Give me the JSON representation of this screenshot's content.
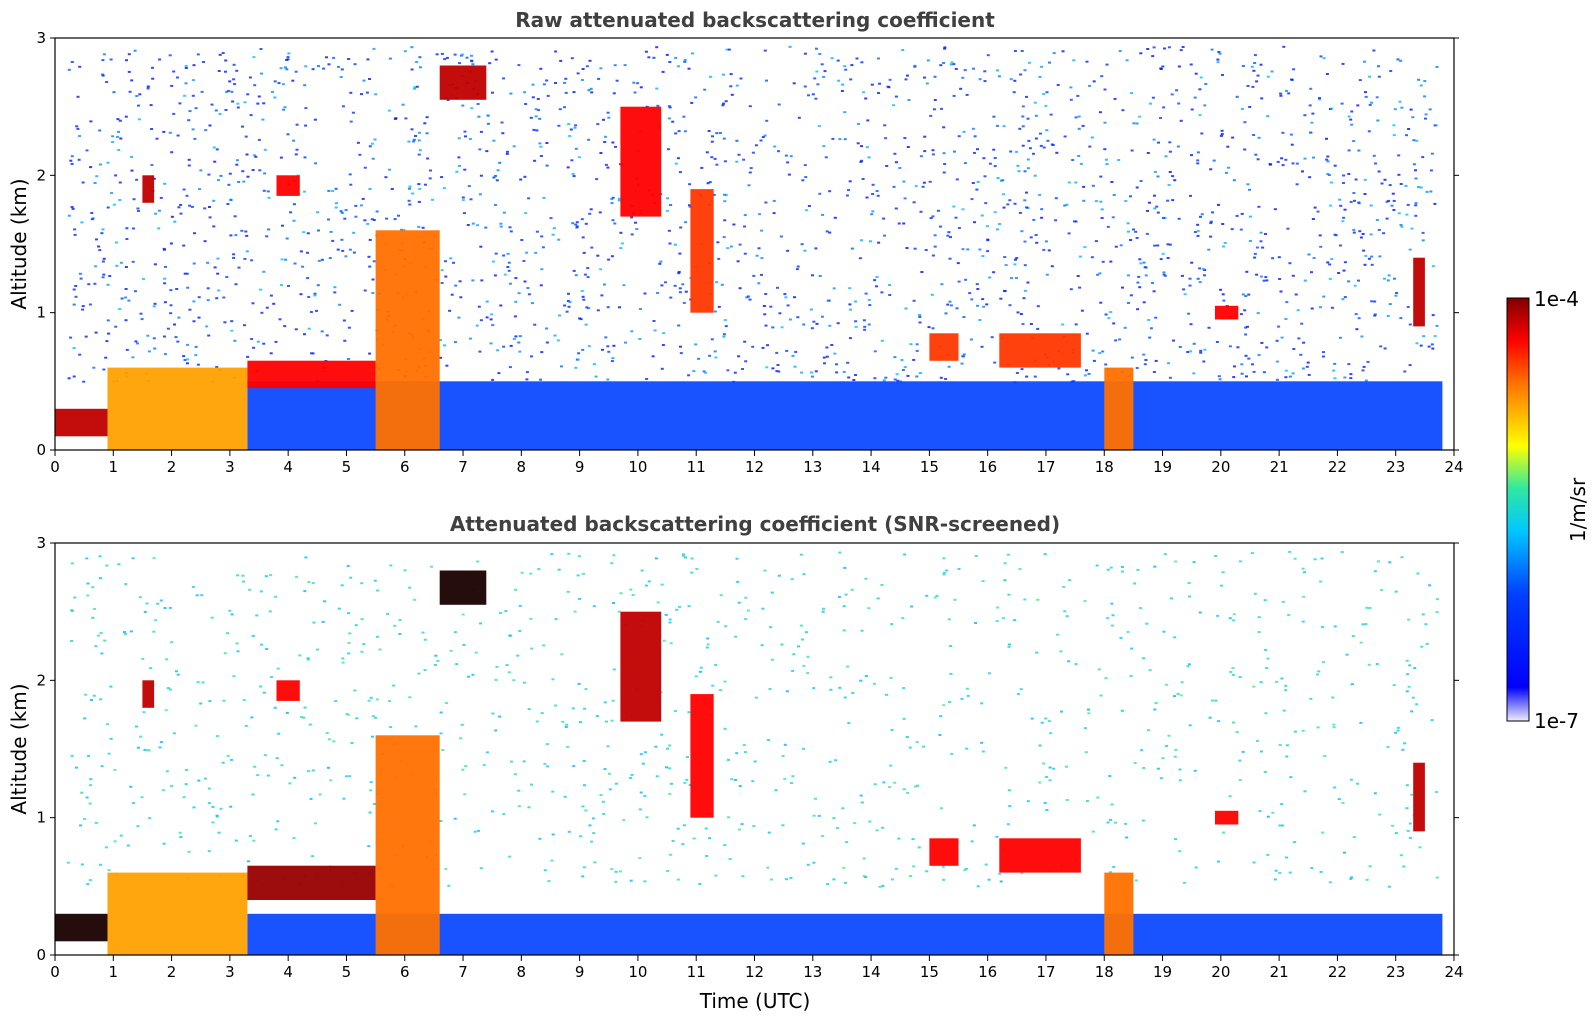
{
  "chart_data": [
    {
      "type": "heatmap",
      "title": "Raw attenuated backscattering coefficient",
      "xlabel": "",
      "ylabel": "Altitude (km)",
      "xlim": [
        0,
        24
      ],
      "ylim": [
        0,
        3
      ],
      "xticks": [
        "0",
        "1",
        "2",
        "3",
        "4",
        "5",
        "6",
        "7",
        "8",
        "9",
        "10",
        "11",
        "12",
        "13",
        "14",
        "15",
        "16",
        "17",
        "18",
        "19",
        "20",
        "21",
        "22",
        "23",
        "24"
      ],
      "yticks": [
        "0",
        "1",
        "2",
        "3"
      ],
      "features": [
        {
          "x": [
            0.0,
            0.9
          ],
          "y": [
            0.1,
            0.3
          ],
          "level": 0.95
        },
        {
          "x": [
            0.9,
            3.3
          ],
          "y": [
            0.0,
            0.6
          ],
          "level": 0.75
        },
        {
          "x": [
            3.3,
            5.5
          ],
          "y": [
            0.45,
            0.65
          ],
          "level": 0.9
        },
        {
          "x": [
            5.5,
            6.6
          ],
          "y": [
            0.0,
            1.6
          ],
          "level": 0.8
        },
        {
          "x": [
            6.6,
            7.4
          ],
          "y": [
            2.55,
            2.8
          ],
          "level": 0.95
        },
        {
          "x": [
            1.5,
            1.7
          ],
          "y": [
            1.8,
            2.0
          ],
          "level": 0.95
        },
        {
          "x": [
            3.8,
            4.2
          ],
          "y": [
            1.85,
            2.0
          ],
          "level": 0.9
        },
        {
          "x": [
            9.7,
            10.4
          ],
          "y": [
            1.7,
            2.5
          ],
          "level": 0.9
        },
        {
          "x": [
            10.9,
            11.3
          ],
          "y": [
            1.0,
            1.9
          ],
          "level": 0.85
        },
        {
          "x": [
            15.0,
            15.5
          ],
          "y": [
            0.65,
            0.85
          ],
          "level": 0.85
        },
        {
          "x": [
            16.2,
            17.6
          ],
          "y": [
            0.6,
            0.85
          ],
          "level": 0.85
        },
        {
          "x": [
            18.0,
            18.5
          ],
          "y": [
            0.0,
            0.6
          ],
          "level": 0.8
        },
        {
          "x": [
            19.9,
            20.3
          ],
          "y": [
            0.95,
            1.05
          ],
          "level": 0.9
        },
        {
          "x": [
            23.3,
            23.5
          ],
          "y": [
            0.9,
            1.4
          ],
          "level": 0.95
        },
        {
          "x": [
            3.3,
            23.8
          ],
          "y": [
            0.0,
            0.5
          ],
          "level": 0.3
        }
      ]
    },
    {
      "type": "heatmap",
      "title": "Attenuated backscattering coefficient (SNR-screened)",
      "xlabel": "Time (UTC)",
      "ylabel": "Altitude (km)",
      "xlim": [
        0,
        24
      ],
      "ylim": [
        0,
        3
      ],
      "xticks": [
        "0",
        "1",
        "2",
        "3",
        "4",
        "5",
        "6",
        "7",
        "8",
        "9",
        "10",
        "11",
        "12",
        "13",
        "14",
        "15",
        "16",
        "17",
        "18",
        "19",
        "20",
        "21",
        "22",
        "23",
        "24"
      ],
      "yticks": [
        "0",
        "1",
        "2",
        "3"
      ],
      "features": [
        {
          "x": [
            0.0,
            0.9
          ],
          "y": [
            0.1,
            0.3
          ],
          "level": 1.0
        },
        {
          "x": [
            0.9,
            3.3
          ],
          "y": [
            0.0,
            0.6
          ],
          "level": 0.75
        },
        {
          "x": [
            3.3,
            5.5
          ],
          "y": [
            0.4,
            0.65
          ],
          "level": 0.98
        },
        {
          "x": [
            5.5,
            6.6
          ],
          "y": [
            0.0,
            1.6
          ],
          "level": 0.8
        },
        {
          "x": [
            6.6,
            7.4
          ],
          "y": [
            2.55,
            2.8
          ],
          "level": 1.0
        },
        {
          "x": [
            1.5,
            1.7
          ],
          "y": [
            1.8,
            2.0
          ],
          "level": 0.95
        },
        {
          "x": [
            3.8,
            4.2
          ],
          "y": [
            1.85,
            2.0
          ],
          "level": 0.9
        },
        {
          "x": [
            9.7,
            10.4
          ],
          "y": [
            1.7,
            2.5
          ],
          "level": 0.95
        },
        {
          "x": [
            10.9,
            11.3
          ],
          "y": [
            1.0,
            1.9
          ],
          "level": 0.9
        },
        {
          "x": [
            15.0,
            15.5
          ],
          "y": [
            0.65,
            0.85
          ],
          "level": 0.9
        },
        {
          "x": [
            16.2,
            17.6
          ],
          "y": [
            0.6,
            0.85
          ],
          "level": 0.9
        },
        {
          "x": [
            18.0,
            18.5
          ],
          "y": [
            0.0,
            0.6
          ],
          "level": 0.8
        },
        {
          "x": [
            19.9,
            20.3
          ],
          "y": [
            0.95,
            1.05
          ],
          "level": 0.9
        },
        {
          "x": [
            23.3,
            23.5
          ],
          "y": [
            0.9,
            1.4
          ],
          "level": 0.95
        },
        {
          "x": [
            3.3,
            23.8
          ],
          "y": [
            0.0,
            0.3
          ],
          "level": 0.3
        }
      ]
    }
  ],
  "colorbar": {
    "label": "1/m/sr",
    "max_label": "1e-4",
    "min_label": "1e-7",
    "colormap": [
      "#e8e8f8",
      "#0000ff",
      "#00bfff",
      "#00e0b0",
      "#ffff00",
      "#ff7f00",
      "#ff0000",
      "#7f0000"
    ]
  }
}
